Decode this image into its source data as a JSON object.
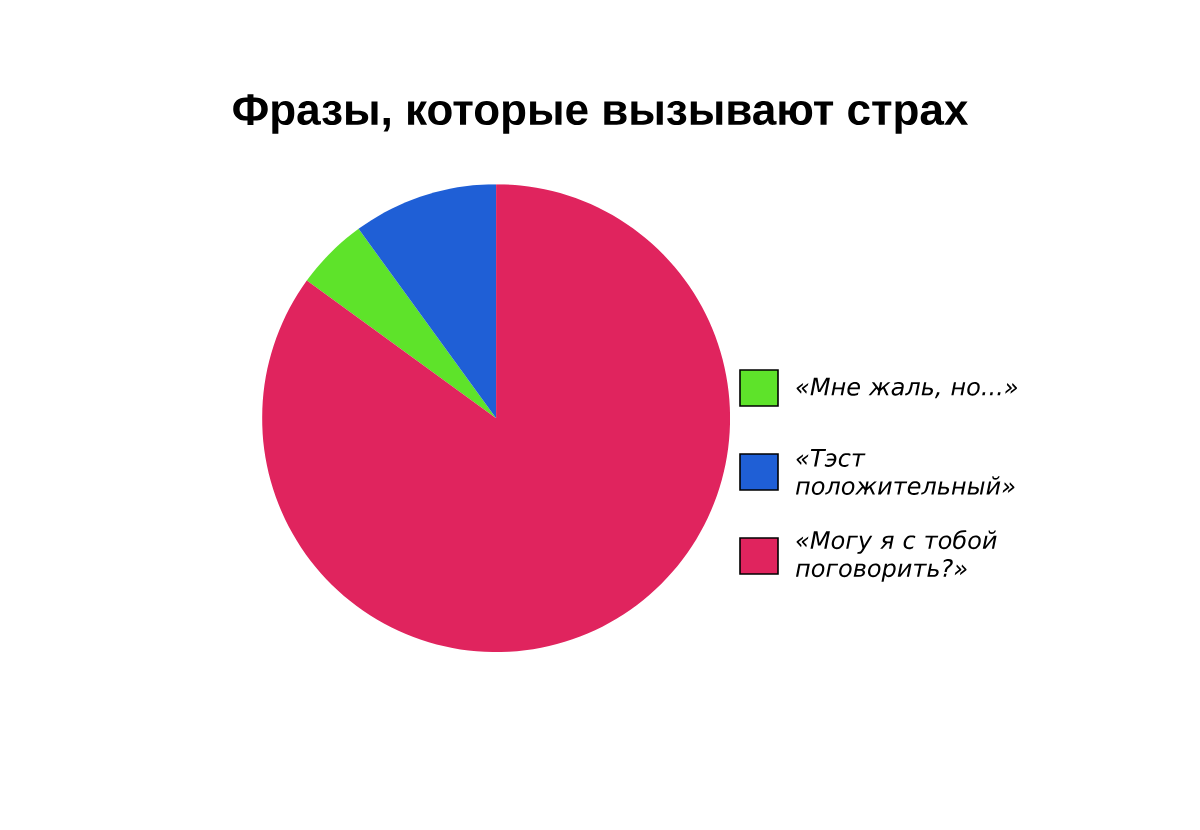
{
  "chart_data": {
    "type": "pie",
    "title": "Фразы, которые вызывают страх",
    "categories": [
      "«Мне жаль, но...»",
      "«Тэст положительный»",
      "«Могу я с тобой поговорить?»"
    ],
    "values": [
      5,
      10,
      85
    ],
    "colors": [
      "#5ee32a",
      "#1f5fd6",
      "#e0245e"
    ],
    "legend": "right"
  }
}
